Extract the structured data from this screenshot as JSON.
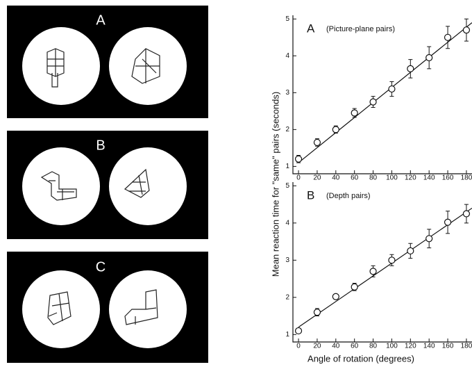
{
  "stimuli": {
    "labels": [
      "A",
      "B",
      "C"
    ]
  },
  "chart_data": [
    {
      "type": "line",
      "label": "A",
      "title": "(Picture-plane pairs)",
      "ylabel": "Mean reaction time for \"same\" pairs (seconds)",
      "x": [
        0,
        20,
        40,
        60,
        80,
        100,
        120,
        140,
        160,
        180
      ],
      "series": [
        {
          "color": "#111",
          "values": [
            1.2,
            1.65,
            2.0,
            2.45,
            2.75,
            3.1,
            3.65,
            3.95,
            4.5,
            4.7
          ],
          "errors": [
            0.1,
            0.1,
            0.1,
            0.12,
            0.15,
            0.2,
            0.25,
            0.3,
            0.3,
            0.3
          ]
        }
      ],
      "fit": {
        "x": [
          0,
          186
        ],
        "values": [
          1.1,
          4.9
        ]
      },
      "xlim": [
        -6,
        186
      ],
      "ylim": [
        0.8,
        5.1
      ],
      "xticks": [
        0,
        20,
        40,
        60,
        80,
        100,
        120,
        140,
        160,
        180
      ],
      "yticks": [
        1,
        2,
        3,
        4,
        5
      ]
    },
    {
      "type": "line",
      "label": "B",
      "title": "(Depth pairs)",
      "xlabel": "Angle of rotation (degrees)",
      "x": [
        0,
        20,
        40,
        60,
        80,
        100,
        120,
        140,
        160,
        180
      ],
      "series": [
        {
          "color": "#111",
          "values": [
            1.1,
            1.6,
            2.02,
            2.28,
            2.7,
            3.0,
            3.25,
            3.58,
            4.02,
            4.25
          ],
          "errors": [
            0.05,
            0.1,
            0.05,
            0.1,
            0.15,
            0.15,
            0.2,
            0.25,
            0.3,
            0.25
          ]
        }
      ],
      "fit": {
        "x": [
          0,
          186
        ],
        "values": [
          1.2,
          4.4
        ]
      },
      "xlim": [
        -6,
        186
      ],
      "ylim": [
        0.8,
        5.1
      ],
      "xticks": [
        0,
        20,
        40,
        60,
        80,
        100,
        120,
        140,
        160,
        180
      ],
      "yticks": [
        1,
        2,
        3,
        4,
        5
      ]
    }
  ]
}
